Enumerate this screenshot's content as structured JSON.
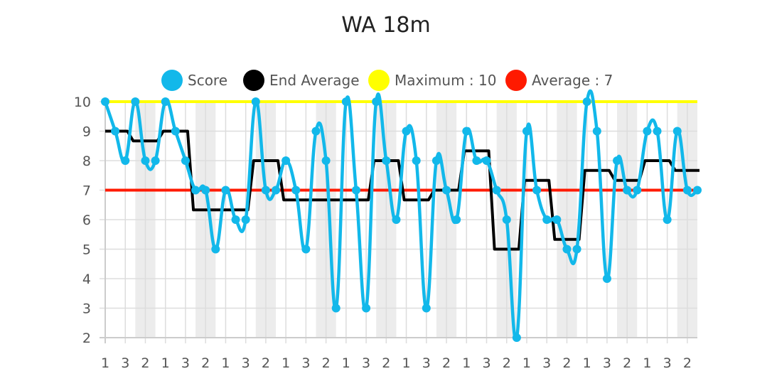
{
  "chart_data": {
    "type": "line",
    "title": "WA 18m",
    "legend": {
      "placement": "top",
      "entries": [
        "Score",
        "End Average",
        "Maximum : 10",
        "Average : 7"
      ]
    },
    "colors": {
      "score": "#12b8ea",
      "end_average": "#000000",
      "maximum": "#ffff00",
      "average": "#ff1a00",
      "band": "#ececec",
      "grid": "#dddddd"
    },
    "ylim": [
      2,
      10
    ],
    "yticks": [
      2,
      3,
      4,
      5,
      6,
      7,
      8,
      9,
      10
    ],
    "x_labels": [
      1,
      2,
      3,
      1,
      2,
      3,
      1,
      2,
      3,
      1,
      2,
      3,
      1,
      2,
      3,
      1,
      2,
      3,
      1,
      2,
      3,
      1,
      2,
      3,
      1,
      2,
      3,
      1,
      2,
      3,
      1,
      2,
      3,
      1,
      2,
      3,
      1,
      2,
      3,
      1,
      2,
      3,
      1,
      2,
      3,
      1,
      2,
      3,
      1,
      2,
      3,
      1,
      2,
      3,
      1,
      2,
      3,
      1,
      2,
      3
    ],
    "grid": true,
    "series": [
      {
        "name": "Score",
        "values": [
          10,
          9,
          8,
          10,
          8,
          8,
          10,
          9,
          8,
          7,
          7,
          5,
          7,
          6,
          6,
          10,
          7,
          7,
          8,
          7,
          5,
          9,
          8,
          3,
          10,
          7,
          3,
          10,
          8,
          6,
          9,
          8,
          3,
          8,
          7,
          6,
          9,
          8,
          8,
          7,
          6,
          2,
          9,
          7,
          6,
          6,
          5,
          5,
          10,
          9,
          4,
          8,
          7,
          7,
          9,
          9,
          6,
          9,
          7,
          7
        ]
      },
      {
        "name": "End Average",
        "values": [
          9,
          8.67,
          9,
          6.33,
          6.33,
          8,
          6.67,
          6.67,
          6.67,
          8,
          6.67,
          7,
          8.33,
          5,
          7.33,
          5.33,
          7.67,
          7.33,
          8,
          7.67
        ]
      },
      {
        "name": "Maximum : 10",
        "value": 10
      },
      {
        "name": "Average : 7",
        "value": 7
      }
    ]
  }
}
